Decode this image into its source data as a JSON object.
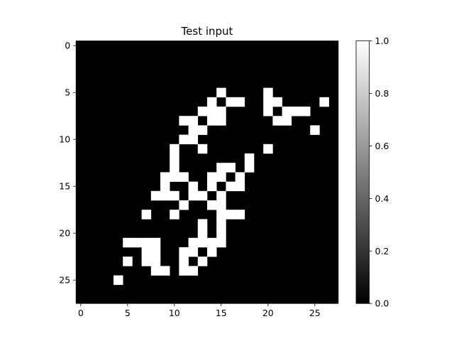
{
  "chart_data": {
    "type": "heatmap",
    "title": "Test input",
    "colormap": "gray",
    "colors": {
      "low": "#000000",
      "high": "#ffffff"
    },
    "rows": 28,
    "cols": 28,
    "x_ticks": [
      0,
      5,
      10,
      15,
      20,
      25
    ],
    "y_ticks": [
      0,
      5,
      10,
      15,
      20,
      25
    ],
    "colorbar": {
      "ticks": [
        0.0,
        0.2,
        0.4,
        0.6,
        0.8,
        1.0
      ],
      "tick_labels": [
        "0.0",
        "0.2",
        "0.4",
        "0.6",
        "0.8",
        "1.0"
      ],
      "range": [
        0.0,
        1.0
      ]
    },
    "on_pixels": [
      [
        5,
        15
      ],
      [
        5,
        20
      ],
      [
        6,
        14
      ],
      [
        6,
        16
      ],
      [
        6,
        17
      ],
      [
        6,
        20
      ],
      [
        6,
        21
      ],
      [
        6,
        26
      ],
      [
        7,
        13
      ],
      [
        7,
        14
      ],
      [
        7,
        15
      ],
      [
        7,
        20
      ],
      [
        7,
        22
      ],
      [
        7,
        23
      ],
      [
        7,
        24
      ],
      [
        8,
        11
      ],
      [
        8,
        12
      ],
      [
        8,
        14
      ],
      [
        8,
        15
      ],
      [
        8,
        21
      ],
      [
        8,
        22
      ],
      [
        9,
        12
      ],
      [
        9,
        13
      ],
      [
        9,
        25
      ],
      [
        10,
        11
      ],
      [
        10,
        12
      ],
      [
        11,
        10
      ],
      [
        11,
        13
      ],
      [
        11,
        20
      ],
      [
        12,
        10
      ],
      [
        12,
        18
      ],
      [
        13,
        10
      ],
      [
        13,
        15
      ],
      [
        13,
        16
      ],
      [
        13,
        18
      ],
      [
        14,
        9
      ],
      [
        14,
        10
      ],
      [
        14,
        11
      ],
      [
        14,
        14
      ],
      [
        14,
        15
      ],
      [
        14,
        17
      ],
      [
        15,
        9
      ],
      [
        15,
        12
      ],
      [
        15,
        14
      ],
      [
        15,
        16
      ],
      [
        15,
        17
      ],
      [
        16,
        8
      ],
      [
        16,
        9
      ],
      [
        16,
        10
      ],
      [
        16,
        12
      ],
      [
        16,
        13
      ],
      [
        16,
        15
      ],
      [
        17,
        11
      ],
      [
        17,
        14
      ],
      [
        17,
        15
      ],
      [
        18,
        7
      ],
      [
        18,
        10
      ],
      [
        18,
        15
      ],
      [
        18,
        16
      ],
      [
        18,
        17
      ],
      [
        19,
        13
      ],
      [
        19,
        15
      ],
      [
        20,
        13
      ],
      [
        20,
        15
      ],
      [
        21,
        5
      ],
      [
        21,
        6
      ],
      [
        21,
        7
      ],
      [
        21,
        8
      ],
      [
        21,
        12
      ],
      [
        21,
        13
      ],
      [
        21,
        14
      ],
      [
        21,
        15
      ],
      [
        22,
        7
      ],
      [
        22,
        8
      ],
      [
        22,
        11
      ],
      [
        22,
        12
      ],
      [
        22,
        14
      ],
      [
        23,
        5
      ],
      [
        23,
        7
      ],
      [
        23,
        8
      ],
      [
        23,
        11
      ],
      [
        23,
        13
      ],
      [
        24,
        8
      ],
      [
        24,
        9
      ],
      [
        24,
        11
      ],
      [
        24,
        12
      ],
      [
        25,
        4
      ]
    ]
  }
}
